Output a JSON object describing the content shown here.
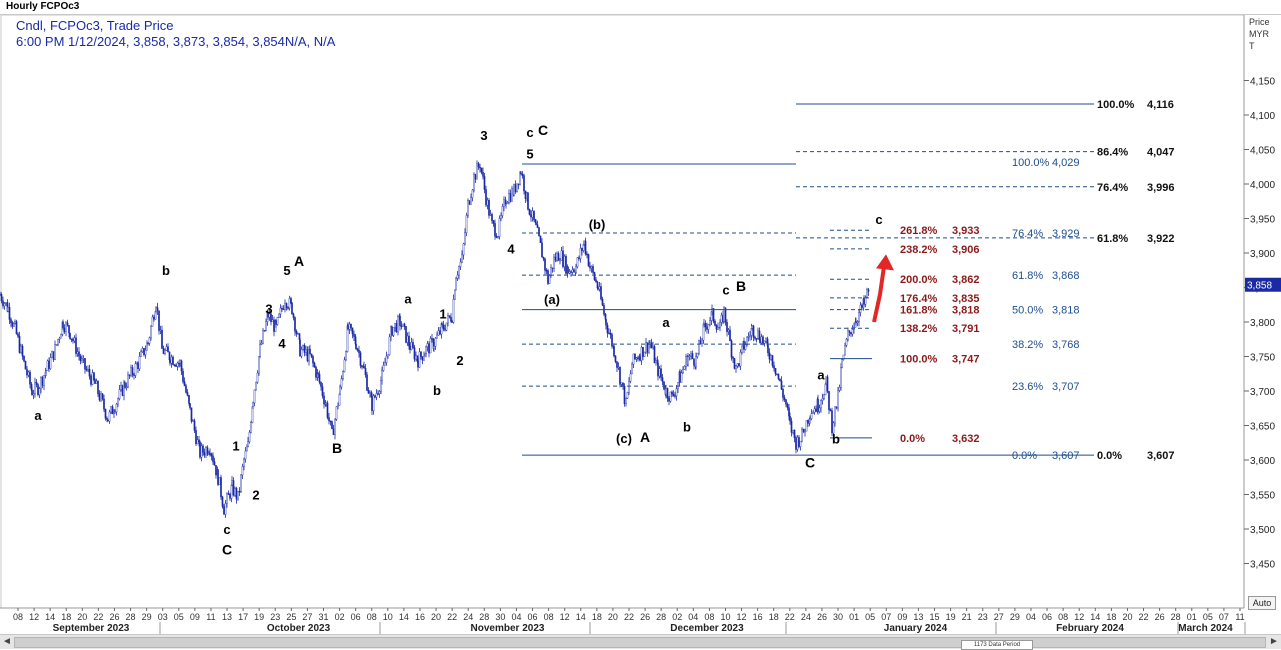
{
  "window_title": "Hourly FCPOc3",
  "legend": {
    "line1": "Cndl, FCPOc3, Trade Price",
    "line2": "6:00 PM 1/12/2024, 3,858, 3,873, 3,854, 3,854N/A, N/A"
  },
  "price_axis": {
    "header_line1": "Price",
    "header_line2": "MYR",
    "header_line3": "T",
    "current_price_label": "3,858"
  },
  "auto_button": "Auto",
  "scrollbar": {
    "data_period": "1173 Data Period",
    "left_arrow": "◄",
    "right_arrow": "►"
  },
  "chart_data": {
    "type": "candlestick",
    "title": "Hourly FCPOc3",
    "series_name": "FCPOc3",
    "ylim": [
      3400,
      4180
    ],
    "y_ticks": [
      {
        "value": 3450,
        "label": "3,450"
      },
      {
        "value": 3500,
        "label": "3,500"
      },
      {
        "value": 3550,
        "label": "3,550"
      },
      {
        "value": 3600,
        "label": "3,600"
      },
      {
        "value": 3650,
        "label": "3,650"
      },
      {
        "value": 3700,
        "label": "3,700"
      },
      {
        "value": 3750,
        "label": "3,750"
      },
      {
        "value": 3800,
        "label": "3,800"
      },
      {
        "value": 3850,
        "label": "3,850"
      },
      {
        "value": 3900,
        "label": "3,900"
      },
      {
        "value": 3950,
        "label": "3,950"
      },
      {
        "value": 4000,
        "label": "4,000"
      },
      {
        "value": 4050,
        "label": "4,050"
      },
      {
        "value": 4100,
        "label": "4,100"
      },
      {
        "value": 4150,
        "label": "4,150"
      }
    ],
    "x_day_ticks": [
      "08",
      "12",
      "14",
      "18",
      "20",
      "22",
      "26",
      "28",
      "29",
      "03",
      "05",
      "09",
      "11",
      "13",
      "17",
      "19",
      "23",
      "25",
      "27",
      "31",
      "02",
      "06",
      "08",
      "10",
      "14",
      "16",
      "20",
      "22",
      "24",
      "28",
      "30",
      "04",
      "06",
      "08",
      "12",
      "14",
      "18",
      "20",
      "22",
      "26",
      "28",
      "02",
      "04",
      "08",
      "10",
      "12",
      "16",
      "18",
      "22",
      "24",
      "26",
      "30",
      "01",
      "05",
      "07",
      "09",
      "13",
      "15",
      "19",
      "21",
      "23",
      "27",
      "29",
      "04",
      "06",
      "08",
      "12",
      "14",
      "18",
      "20",
      "22",
      "26",
      "28",
      "01",
      "05",
      "07",
      "11"
    ],
    "x_month_labels": [
      "September 2023",
      "October 2023",
      "November 2023",
      "December 2023",
      "January 2024",
      "February 2024",
      "March 2024"
    ],
    "price_path": [
      [
        0,
        3840
      ],
      [
        8,
        3820
      ],
      [
        15,
        3790
      ],
      [
        24,
        3740
      ],
      [
        32,
        3700
      ],
      [
        38,
        3705
      ],
      [
        46,
        3730
      ],
      [
        55,
        3760
      ],
      [
        63,
        3800
      ],
      [
        70,
        3785
      ],
      [
        82,
        3740
      ],
      [
        95,
        3710
      ],
      [
        108,
        3660
      ],
      [
        115,
        3680
      ],
      [
        125,
        3710
      ],
      [
        138,
        3740
      ],
      [
        148,
        3770
      ],
      [
        156,
        3830
      ],
      [
        162,
        3760
      ],
      [
        170,
        3750
      ],
      [
        180,
        3740
      ],
      [
        190,
        3670
      ],
      [
        200,
        3610
      ],
      [
        210,
        3620
      ],
      [
        218,
        3575
      ],
      [
        224,
        3530
      ],
      [
        232,
        3560
      ],
      [
        238,
        3545
      ],
      [
        244,
        3600
      ],
      [
        248,
        3620
      ],
      [
        253,
        3690
      ],
      [
        260,
        3760
      ],
      [
        268,
        3810
      ],
      [
        276,
        3790
      ],
      [
        285,
        3835
      ],
      [
        292,
        3820
      ],
      [
        300,
        3760
      ],
      [
        310,
        3750
      ],
      [
        318,
        3720
      ],
      [
        326,
        3680
      ],
      [
        332,
        3635
      ],
      [
        340,
        3700
      ],
      [
        348,
        3790
      ],
      [
        356,
        3770
      ],
      [
        364,
        3730
      ],
      [
        372,
        3680
      ],
      [
        382,
        3720
      ],
      [
        392,
        3790
      ],
      [
        400,
        3800
      ],
      [
        410,
        3765
      ],
      [
        418,
        3745
      ],
      [
        426,
        3760
      ],
      [
        434,
        3770
      ],
      [
        442,
        3790
      ],
      [
        452,
        3810
      ],
      [
        456,
        3870
      ],
      [
        462,
        3890
      ],
      [
        468,
        3970
      ],
      [
        474,
        4010
      ],
      [
        480,
        4030
      ],
      [
        486,
        3980
      ],
      [
        492,
        3940
      ],
      [
        498,
        3930
      ],
      [
        506,
        3980
      ],
      [
        514,
        3990
      ],
      [
        521,
        4020
      ],
      [
        528,
        3970
      ],
      [
        536,
        3935
      ],
      [
        542,
        3900
      ],
      [
        548,
        3860
      ],
      [
        554,
        3890
      ],
      [
        560,
        3900
      ],
      [
        568,
        3875
      ],
      [
        576,
        3880
      ],
      [
        584,
        3915
      ],
      [
        590,
        3880
      ],
      [
        598,
        3850
      ],
      [
        606,
        3800
      ],
      [
        614,
        3760
      ],
      [
        620,
        3720
      ],
      [
        626,
        3680
      ],
      [
        632,
        3740
      ],
      [
        640,
        3755
      ],
      [
        650,
        3770
      ],
      [
        658,
        3730
      ],
      [
        666,
        3700
      ],
      [
        672,
        3690
      ],
      [
        680,
        3720
      ],
      [
        688,
        3750
      ],
      [
        696,
        3745
      ],
      [
        704,
        3790
      ],
      [
        712,
        3810
      ],
      [
        720,
        3790
      ],
      [
        724,
        3815
      ],
      [
        730,
        3770
      ],
      [
        736,
        3730
      ],
      [
        744,
        3765
      ],
      [
        752,
        3790
      ],
      [
        760,
        3780
      ],
      [
        768,
        3760
      ],
      [
        774,
        3740
      ],
      [
        780,
        3710
      ],
      [
        786,
        3680
      ],
      [
        790,
        3650
      ],
      [
        796,
        3625
      ],
      [
        802,
        3635
      ],
      [
        810,
        3670
      ],
      [
        818,
        3680
      ],
      [
        826,
        3710
      ],
      [
        832,
        3650
      ],
      [
        838,
        3690
      ],
      [
        842,
        3740
      ],
      [
        848,
        3780
      ],
      [
        856,
        3805
      ],
      [
        864,
        3825
      ],
      [
        870,
        3854
      ]
    ],
    "wave_labels": [
      {
        "text": "a",
        "x": 38,
        "y": 3658,
        "size": 13
      },
      {
        "text": "b",
        "x": 166,
        "y": 3868,
        "size": 13
      },
      {
        "text": "1",
        "x": 236,
        "y": 3614,
        "size": 13
      },
      {
        "text": "2",
        "x": 256,
        "y": 3543,
        "size": 13
      },
      {
        "text": "c",
        "x": 227,
        "y": 3493,
        "size": 13
      },
      {
        "text": "C",
        "x": 227,
        "y": 3463,
        "size": 14
      },
      {
        "text": "3",
        "x": 269,
        "y": 3812,
        "size": 13
      },
      {
        "text": "4",
        "x": 282,
        "y": 3762,
        "size": 13
      },
      {
        "text": "5",
        "x": 287,
        "y": 3868,
        "size": 13
      },
      {
        "text": "A",
        "x": 299,
        "y": 3881,
        "size": 14
      },
      {
        "text": "B",
        "x": 337,
        "y": 3610,
        "size": 14
      },
      {
        "text": "a",
        "x": 408,
        "y": 3827,
        "size": 13
      },
      {
        "text": "1",
        "x": 443,
        "y": 3805,
        "size": 13
      },
      {
        "text": "2",
        "x": 460,
        "y": 3738,
        "size": 13
      },
      {
        "text": "b",
        "x": 437,
        "y": 3694,
        "size": 13
      },
      {
        "text": "3",
        "x": 484,
        "y": 4064,
        "size": 13
      },
      {
        "text": "4",
        "x": 511,
        "y": 3899,
        "size": 13
      },
      {
        "text": "5",
        "x": 530,
        "y": 4037,
        "size": 13
      },
      {
        "text": "c",
        "x": 530,
        "y": 4068,
        "size": 13
      },
      {
        "text": "C",
        "x": 543,
        "y": 4071,
        "size": 14
      },
      {
        "text": "(b)",
        "x": 597,
        "y": 3935,
        "size": 13
      },
      {
        "text": "(a)",
        "x": 552,
        "y": 3826,
        "size": 13
      },
      {
        "text": "(c)",
        "x": 624,
        "y": 3625,
        "size": 13
      },
      {
        "text": "A",
        "x": 645,
        "y": 3626,
        "size": 14
      },
      {
        "text": "a",
        "x": 666,
        "y": 3793,
        "size": 13
      },
      {
        "text": "b",
        "x": 687,
        "y": 3641,
        "size": 13
      },
      {
        "text": "c",
        "x": 726,
        "y": 3840,
        "size": 13
      },
      {
        "text": "B",
        "x": 741,
        "y": 3845,
        "size": 14
      },
      {
        "text": "C",
        "x": 810,
        "y": 3589,
        "size": 14
      },
      {
        "text": "a",
        "x": 821,
        "y": 3717,
        "size": 13
      },
      {
        "text": "b",
        "x": 836,
        "y": 3624,
        "size": 13
      },
      {
        "text": "c",
        "x": 879,
        "y": 3942,
        "size": 13
      }
    ],
    "fib_retracement_1": [
      {
        "label": "0.0%",
        "value_label": "3,607",
        "value": 3607
      },
      {
        "label": "23.6%",
        "value_label": "3,707",
        "value": 3707
      },
      {
        "label": "38.2%",
        "value_label": "3,768",
        "value": 3768
      },
      {
        "label": "50.0%",
        "value_label": "3,818",
        "value": 3818
      },
      {
        "label": "61.8%",
        "value_label": "3,868",
        "value": 3868
      },
      {
        "label": "76.4%",
        "value_label": "3,929",
        "value": 3929
      },
      {
        "label": "100.0%",
        "value_label": "4,029",
        "value": 4029
      }
    ],
    "fib_extension": [
      {
        "label": "0.0%",
        "value_label": "3,632",
        "value": 3632
      },
      {
        "label": "100.0%",
        "value_label": "3,747",
        "value": 3747
      },
      {
        "label": "138.2%",
        "value_label": "3,791",
        "value": 3791
      },
      {
        "label": "161.8%",
        "value_label": "3,818",
        "value": 3818
      },
      {
        "label": "176.4%",
        "value_label": "3,835",
        "value": 3835
      },
      {
        "label": "200.0%",
        "value_label": "3,862",
        "value": 3862
      },
      {
        "label": "238.2%",
        "value_label": "3,906",
        "value": 3906
      },
      {
        "label": "261.8%",
        "value_label": "3,933",
        "value": 3933
      }
    ],
    "fib_retracement_2": [
      {
        "label": "0.0%",
        "value_label": "3,607",
        "value": 3607
      },
      {
        "label": "61.8%",
        "value_label": "3,922",
        "value": 3922
      },
      {
        "label": "76.4%",
        "value_label": "3,996",
        "value": 3996
      },
      {
        "label": "86.4%",
        "value_label": "4,047",
        "value": 4047
      },
      {
        "label": "100.0%",
        "value_label": "4,116",
        "value": 4116
      }
    ],
    "colors": {
      "candles": "#1a2aa6",
      "fib_blue": "#1f4e8c",
      "fib_red": "#8b1a1a",
      "arrow": "#e32626",
      "labels": "#000000"
    }
  }
}
